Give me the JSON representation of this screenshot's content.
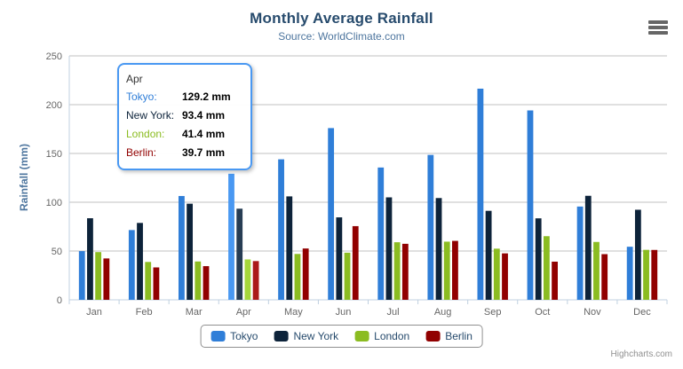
{
  "chart": {
    "title": "Monthly Average Rainfall",
    "subtitle": "Source: WorldClimate.com",
    "y_axis_title": "Rainfall (mm)",
    "credits": "Highcharts.com"
  },
  "chart_data": {
    "type": "bar",
    "title": "Monthly Average Rainfall",
    "subtitle": "Source: WorldClimate.com",
    "categories": [
      "Jan",
      "Feb",
      "Mar",
      "Apr",
      "May",
      "Jun",
      "Jul",
      "Aug",
      "Sep",
      "Oct",
      "Nov",
      "Dec"
    ],
    "series": [
      {
        "name": "Tokyo",
        "color": "#2f7ed8",
        "hover_color": "#4998f2",
        "values": [
          49.9,
          71.5,
          106.4,
          129.2,
          144.0,
          176.0,
          135.6,
          148.5,
          216.4,
          194.1,
          95.6,
          54.4
        ]
      },
      {
        "name": "New York",
        "color": "#0d233a",
        "hover_color": "#273d54",
        "values": [
          83.6,
          78.8,
          98.5,
          93.4,
          106.0,
          84.5,
          105.0,
          104.3,
          91.2,
          83.5,
          106.6,
          92.3
        ]
      },
      {
        "name": "London",
        "color": "#8bbc21",
        "hover_color": "#a5d63b",
        "values": [
          48.9,
          38.8,
          39.3,
          41.4,
          47.0,
          48.3,
          59.0,
          59.6,
          52.4,
          65.2,
          59.3,
          51.2
        ]
      },
      {
        "name": "Berlin",
        "color": "#910000",
        "hover_color": "#ab1a1a",
        "values": [
          42.4,
          33.2,
          34.5,
          39.7,
          52.6,
          75.5,
          57.4,
          60.4,
          47.6,
          39.1,
          46.8,
          51.1
        ]
      }
    ],
    "xlabel": "",
    "ylabel": "Rainfall (mm)",
    "ylim": [
      0,
      250
    ],
    "ytick_step": 50,
    "grid": true,
    "legend_position": "bottom",
    "hovered_category_index": 3
  },
  "tooltip": {
    "header": "Apr",
    "border_color": "#4998f2",
    "rows": [
      {
        "label": "Tokyo:",
        "value": "129.2 mm",
        "color": "#2f7ed8"
      },
      {
        "label": "New York:",
        "value": "93.4 mm",
        "color": "#0d233a"
      },
      {
        "label": "London:",
        "value": "41.4 mm",
        "color": "#8bbc21"
      },
      {
        "label": "Berlin:",
        "value": "39.7 mm",
        "color": "#910000"
      }
    ]
  },
  "theme": {
    "title_color": "#274b6d",
    "subtitle_color": "#4d759e",
    "axis_title_color": "#4d759e",
    "axis_label_color": "#666666",
    "grid_color": "#c0c0c0",
    "axis_line_color": "#c0d0e0",
    "legend_text_color": "#274b6d",
    "legend_border_color": "#909090",
    "credits_color": "#909090"
  }
}
